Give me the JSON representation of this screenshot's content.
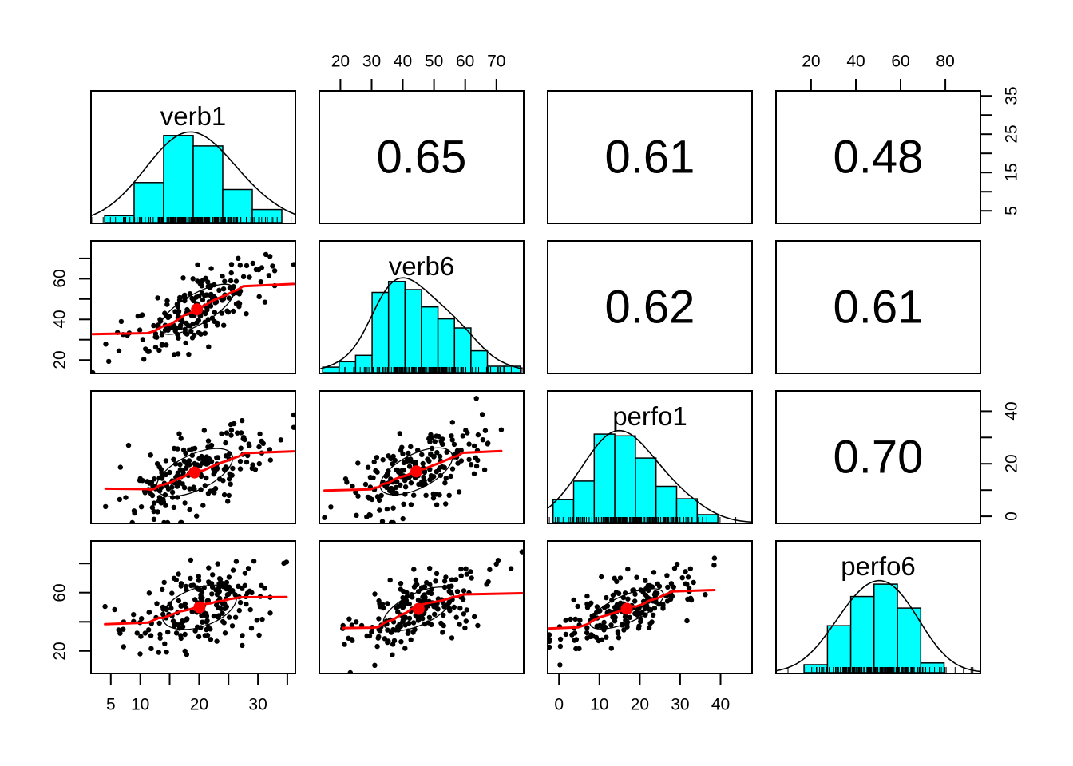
{
  "background": "#FFFFFF",
  "colors": {
    "histogram_fill": "#00FFFF",
    "histogram_stroke": "#000000",
    "density_curve": "#000000",
    "scatter_point": "#000000",
    "fit_line": "#FF0000",
    "mean_dot": "#FF0000",
    "ellipse": "#000000",
    "panel_border": "#000000",
    "axis_text": "#000000"
  },
  "chart_data": {
    "type": "scatterplot-matrix",
    "style": "R pairs.panels: diagonal histograms with density curve and rug, upper triangle correlation values, lower triangle scatterplots with loess line, mean dot and correlation ellipse",
    "n_points": 200,
    "variables": [
      {
        "name": "verb1",
        "mean": 19.5,
        "sd": 6,
        "range": [
          1.5,
          36.5
        ],
        "ticks": [
          5,
          10,
          15,
          20,
          25,
          30,
          35
        ],
        "x_axis": {
          "side": "bottom",
          "labeled": [
            5,
            10,
            20,
            30
          ]
        },
        "y_axis": {
          "side": "right",
          "labeled": [
            5,
            15,
            25,
            35
          ]
        },
        "histogram": {
          "rel_heights": [
            0.08,
            0.46,
            1,
            0.88,
            0.38,
            0.15
          ],
          "start_frac": 0.07,
          "end_frac": 0.93,
          "peak_frac": 0.65
        }
      },
      {
        "name": "verb6",
        "mean": 45,
        "sd": 11,
        "range": [
          13,
          79
        ],
        "ticks": [
          20,
          30,
          40,
          50,
          60,
          70
        ],
        "x_axis": {
          "side": "top",
          "labeled": [
            20,
            30,
            40,
            50,
            60,
            70
          ]
        },
        "y_axis": {
          "side": "left",
          "labeled": [
            20,
            40,
            60
          ]
        },
        "histogram": {
          "rel_heights": [
            0.06,
            0.12,
            0.19,
            0.88,
            1,
            0.91,
            0.72,
            0.59,
            0.49,
            0.24,
            0.07,
            0.07
          ],
          "start_frac": 0.02,
          "end_frac": 0.98,
          "peak_frac": 0.68
        }
      },
      {
        "name": "perfo1",
        "mean": 17.5,
        "sd": 8.5,
        "range": [
          -3,
          48
        ],
        "ticks": [
          0,
          10,
          20,
          30,
          40
        ],
        "x_axis": {
          "side": "bottom",
          "labeled": [
            0,
            10,
            20,
            30,
            40
          ]
        },
        "y_axis": {
          "side": "right",
          "labeled": [
            0,
            20,
            40
          ]
        },
        "histogram": {
          "rel_heights": [
            0.26,
            0.47,
            1,
            0.98,
            0.73,
            0.41,
            0.27,
            0.09
          ],
          "start_frac": 0.03,
          "end_frac": 0.83,
          "peak_frac": 0.66
        }
      },
      {
        "name": "perfo6",
        "mean": 50,
        "sd": 14,
        "range": [
          4,
          96
        ],
        "ticks": [
          20,
          40,
          60,
          80
        ],
        "x_axis": {
          "side": "top",
          "labeled": [
            20,
            40,
            60,
            80
          ]
        },
        "y_axis": {
          "side": "left",
          "labeled": [
            20,
            60
          ]
        },
        "histogram": {
          "rel_heights": [
            0.09,
            0.53,
            0.86,
            1,
            0.73,
            0.11
          ],
          "start_frac": 0.14,
          "end_frac": 0.82,
          "peak_frac": 0.66
        }
      }
    ],
    "correlations": [
      {
        "pair": [
          "verb1",
          "verb6"
        ],
        "row": 0,
        "col": 1,
        "value": 0.65,
        "display": "0.65"
      },
      {
        "pair": [
          "verb1",
          "perfo1"
        ],
        "row": 0,
        "col": 2,
        "value": 0.61,
        "display": "0.61"
      },
      {
        "pair": [
          "verb1",
          "perfo6"
        ],
        "row": 0,
        "col": 3,
        "value": 0.48,
        "display": "0.48"
      },
      {
        "pair": [
          "verb6",
          "perfo1"
        ],
        "row": 1,
        "col": 2,
        "value": 0.62,
        "display": "0.62"
      },
      {
        "pair": [
          "verb6",
          "perfo6"
        ],
        "row": 1,
        "col": 3,
        "value": 0.61,
        "display": "0.61"
      },
      {
        "pair": [
          "perfo1",
          "perfo6"
        ],
        "row": 2,
        "col": 3,
        "value": 0.7,
        "display": "0.70"
      }
    ]
  }
}
